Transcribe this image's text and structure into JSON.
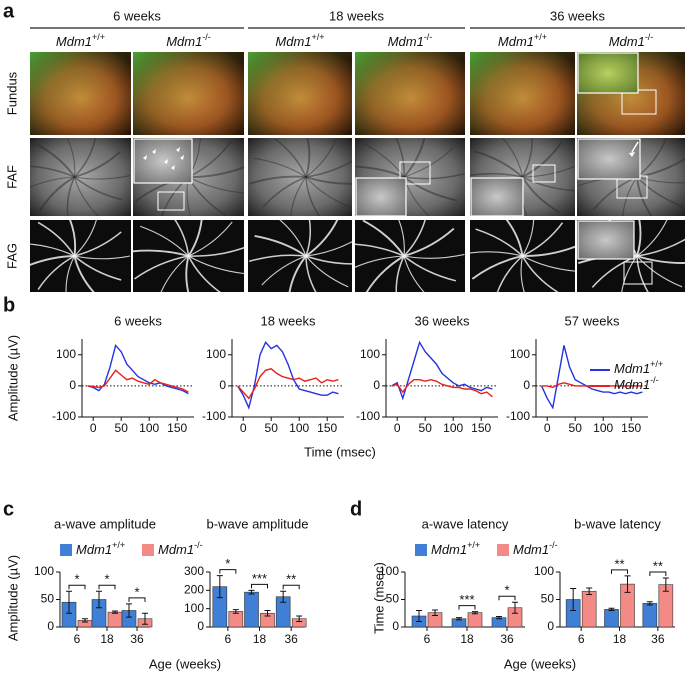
{
  "figure_a": {
    "panel_label": "a",
    "groups": [
      {
        "title": "6 weeks",
        "genotypes": [
          "Mdm1+/+",
          "Mdm1-/-"
        ]
      },
      {
        "title": "18 weeks",
        "genotypes": [
          "Mdm1+/+",
          "Mdm1-/-"
        ]
      },
      {
        "title": "36 weeks",
        "genotypes": [
          "Mdm1+/+",
          "Mdm1-/-"
        ]
      }
    ],
    "rows": [
      "Fundus",
      "FAF",
      "FAG"
    ]
  },
  "chart_data": [
    {
      "type": "line",
      "panel_label": "b",
      "ylabel": "Amplitude (µV)",
      "xlabel": "Time (msec)",
      "x": [
        -10,
        0,
        10,
        20,
        30,
        40,
        50,
        60,
        70,
        80,
        90,
        100,
        110,
        120,
        130,
        140,
        150,
        160,
        170
      ],
      "xlim": [
        -20,
        180
      ],
      "xticks": [
        0,
        50,
        100,
        150
      ],
      "ylim": [
        -100,
        170
      ],
      "yticks": [
        -100,
        0,
        100
      ],
      "reference_line": 0,
      "series_names": [
        {
          "name": "Mdm1+/+",
          "color": "#2433e0"
        },
        {
          "name": "Mdm1-/-",
          "color": "#e8201a"
        }
      ],
      "subplots": [
        {
          "title": "6 weeks",
          "series": [
            {
              "values": [
                0,
                -5,
                -15,
                5,
                60,
                130,
                110,
                70,
                50,
                30,
                20,
                10,
                5,
                10,
                0,
                -5,
                -10,
                -15,
                -25
              ]
            },
            {
              "values": [
                0,
                -2,
                -5,
                0,
                25,
                50,
                35,
                20,
                25,
                15,
                10,
                5,
                20,
                10,
                5,
                0,
                -5,
                -10,
                -20
              ]
            }
          ]
        },
        {
          "title": "18 weeks",
          "series": [
            {
              "values": [
                0,
                -30,
                -70,
                0,
                100,
                140,
                120,
                130,
                110,
                70,
                20,
                -10,
                -15,
                -20,
                -25,
                -30,
                -30,
                -20,
                -25
              ]
            },
            {
              "values": [
                0,
                -20,
                -40,
                -10,
                30,
                50,
                55,
                40,
                30,
                25,
                20,
                25,
                15,
                20,
                25,
                10,
                20,
                15,
                20
              ]
            }
          ]
        },
        {
          "title": "36 weeks",
          "series": [
            {
              "values": [
                0,
                10,
                -40,
                20,
                80,
                140,
                110,
                90,
                70,
                40,
                25,
                10,
                0,
                5,
                -5,
                -10,
                -15,
                -5,
                -10
              ]
            },
            {
              "values": [
                0,
                5,
                -20,
                5,
                20,
                20,
                15,
                20,
                15,
                5,
                0,
                -5,
                -5,
                -10,
                -10,
                -15,
                -25,
                -20,
                -35
              ]
            }
          ]
        },
        {
          "title": "57 weeks",
          "series": [
            {
              "values": [
                0,
                -40,
                -70,
                30,
                130,
                60,
                20,
                10,
                0,
                -10,
                -15,
                -20,
                -20,
                -25,
                -20,
                -25,
                -20,
                -25,
                -20
              ]
            },
            {
              "values": [
                0,
                0,
                -5,
                5,
                10,
                5,
                0,
                0,
                0,
                0,
                0,
                0,
                0,
                0,
                0,
                0,
                0,
                0,
                0
              ]
            }
          ]
        }
      ]
    },
    {
      "type": "bar",
      "panel_label": "c",
      "ylabel": "Amplitude (µV)",
      "xlabel": "Age (weeks)",
      "categories": [
        "6",
        "18",
        "36"
      ],
      "series_names": [
        {
          "name": "Mdm1+/+",
          "color": "#3f7fd6"
        },
        {
          "name": "Mdm1-/-",
          "color": "#f38a86"
        }
      ],
      "subplots": [
        {
          "title": "a-wave amplitude",
          "ylim": [
            0,
            100
          ],
          "yticks": [
            0,
            50,
            100
          ],
          "series": [
            {
              "values": [
                45,
                50,
                30
              ],
              "errors": [
                20,
                15,
                12
              ]
            },
            {
              "values": [
                12,
                27,
                15
              ],
              "errors": [
                3,
                2,
                10
              ]
            }
          ],
          "significance": [
            "*",
            "*",
            "*"
          ]
        },
        {
          "title": "b-wave amplitude",
          "ylim": [
            0,
            300
          ],
          "yticks": [
            0,
            100,
            200,
            300
          ],
          "series": [
            {
              "values": [
                220,
                190,
                165
              ],
              "errors": [
                60,
                10,
                30
              ]
            },
            {
              "values": [
                85,
                75,
                45
              ],
              "errors": [
                10,
                15,
                15
              ]
            }
          ],
          "significance": [
            "*",
            "***",
            "**"
          ]
        }
      ]
    },
    {
      "type": "bar",
      "panel_label": "d",
      "ylabel": "Time (msec)",
      "xlabel": "Age (weeks)",
      "categories": [
        "6",
        "18",
        "36"
      ],
      "series_names": [
        {
          "name": "Mdm1+/+",
          "color": "#3f7fd6"
        },
        {
          "name": "Mdm1-/-",
          "color": "#f38a86"
        }
      ],
      "subplots": [
        {
          "title": "a-wave latency",
          "ylim": [
            0,
            100
          ],
          "yticks": [
            0,
            50,
            100
          ],
          "series": [
            {
              "values": [
                20,
                15,
                17
              ],
              "errors": [
                10,
                2,
                2
              ]
            },
            {
              "values": [
                26,
                26,
                35
              ],
              "errors": [
                5,
                2,
                10
              ]
            }
          ],
          "significance": [
            null,
            "***",
            "*"
          ]
        },
        {
          "title": "b-wave latency",
          "ylim": [
            0,
            100
          ],
          "yticks": [
            0,
            50,
            100
          ],
          "series": [
            {
              "values": [
                50,
                32,
                43
              ],
              "errors": [
                20,
                2,
                3
              ]
            },
            {
              "values": [
                65,
                78,
                77
              ],
              "errors": [
                6,
                15,
                12
              ]
            }
          ],
          "significance": [
            null,
            "**",
            "**"
          ]
        }
      ]
    }
  ]
}
